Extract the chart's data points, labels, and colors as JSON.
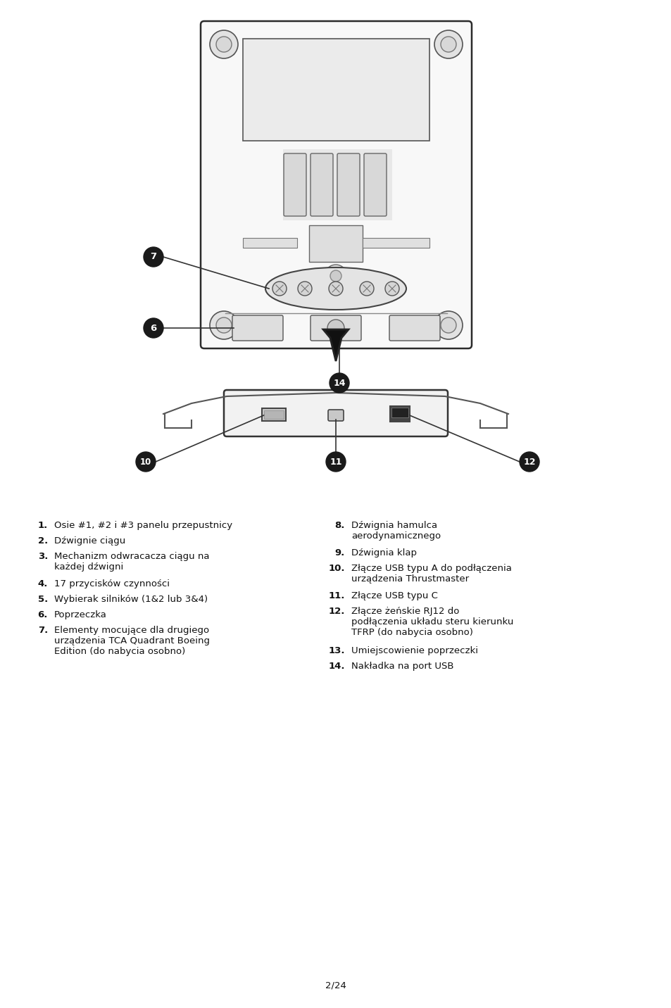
{
  "background_color": "#ffffff",
  "page_number": "2/24",
  "list_left": [
    {
      "num": "1.",
      "text": "Osie #1, #2 i #3 panelu przepustnicy"
    },
    {
      "num": "2.",
      "text": "Dźwignie ciągu"
    },
    {
      "num": "3.",
      "text": "Mechanizm odwracacza ciągu na\nkażdej dźwigni"
    },
    {
      "num": "4.",
      "text": "17 przycisków czynności"
    },
    {
      "num": "5.",
      "text": "Wybierak silników (1&2 lub 3&4)"
    },
    {
      "num": "6.",
      "text": "Poprzeczka"
    },
    {
      "num": "7.",
      "text": "Elementy mocujące dla drugiego\nurządzenia TCA Quadrant Boeing\nEdition (do nabycia osobno)"
    }
  ],
  "list_right": [
    {
      "num": "8.",
      "text": "Dźwignia hamulca\naerodynamicznego"
    },
    {
      "num": "9.",
      "text": "Dźwignia klap"
    },
    {
      "num": "10.",
      "text": "Złącze USB typu A do podłączenia\nurządzenia Thrustmaster"
    },
    {
      "num": "11.",
      "text": "Złącze USB typu C"
    },
    {
      "num": "12.",
      "text": "Złącze żeńskie RJ12 do\npodłączenia układu steru kierunku\nTFRP (do nabycia osobno)"
    },
    {
      "num": "13.",
      "text": "Umiejscowienie poprzeczki"
    },
    {
      "num": "14.",
      "text": "Nakładka na port USB"
    }
  ],
  "label_bg": "#1a1a1a",
  "label_text_color": "#ffffff",
  "font_size_list": 9.5
}
